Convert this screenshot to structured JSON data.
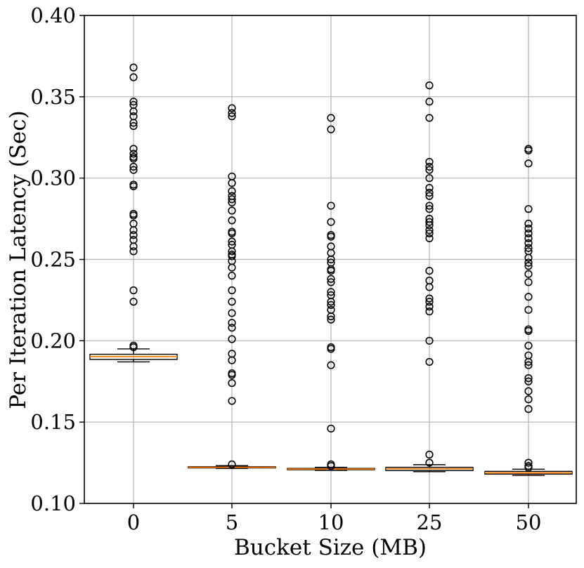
{
  "chart_data": {
    "type": "box",
    "title": "",
    "xlabel": "Bucket Size (MB)",
    "ylabel": "Per Iteration Latency (Sec)",
    "ylim": [
      0.1,
      0.4
    ],
    "yticks": [
      "0.10",
      "0.15",
      "0.20",
      "0.25",
      "0.30",
      "0.35",
      "0.40"
    ],
    "ytick_values": [
      0.1,
      0.15,
      0.2,
      0.25,
      0.3,
      0.35,
      0.4
    ],
    "categories": [
      "0",
      "5",
      "10",
      "25",
      "50"
    ],
    "grid": true,
    "boxes": [
      {
        "category": "0",
        "whisker_low": 0.187,
        "q1": 0.1885,
        "median": 0.1903,
        "q3": 0.1917,
        "whisker_high": 0.195,
        "outliers": [
          0.368,
          0.362,
          0.347,
          0.345,
          0.341,
          0.338,
          0.334,
          0.332,
          0.318,
          0.315,
          0.313,
          0.312,
          0.307,
          0.305,
          0.296,
          0.295,
          0.278,
          0.277,
          0.272,
          0.268,
          0.265,
          0.262,
          0.258,
          0.255,
          0.231,
          0.224,
          0.197,
          0.196
        ]
      },
      {
        "category": "5",
        "whisker_low": 0.1215,
        "q1": 0.1218,
        "median": 0.1222,
        "q3": 0.1226,
        "whisker_high": 0.1232,
        "outliers": [
          0.343,
          0.34,
          0.338,
          0.301,
          0.297,
          0.292,
          0.289,
          0.287,
          0.285,
          0.28,
          0.274,
          0.267,
          0.266,
          0.261,
          0.259,
          0.255,
          0.253,
          0.252,
          0.249,
          0.245,
          0.24,
          0.231,
          0.224,
          0.217,
          0.211,
          0.208,
          0.201,
          0.192,
          0.188,
          0.18,
          0.179,
          0.174,
          0.163,
          0.124
        ]
      },
      {
        "category": "10",
        "whisker_low": 0.1203,
        "q1": 0.1207,
        "median": 0.1211,
        "q3": 0.1215,
        "whisker_high": 0.1222,
        "outliers": [
          0.337,
          0.33,
          0.283,
          0.273,
          0.265,
          0.264,
          0.258,
          0.254,
          0.25,
          0.248,
          0.244,
          0.243,
          0.238,
          0.236,
          0.23,
          0.228,
          0.224,
          0.222,
          0.219,
          0.215,
          0.213,
          0.196,
          0.195,
          0.185,
          0.146,
          0.124,
          0.123
        ]
      },
      {
        "category": "25",
        "whisker_low": 0.1195,
        "q1": 0.1202,
        "median": 0.1213,
        "q3": 0.1222,
        "whisker_high": 0.1238,
        "outliers": [
          0.357,
          0.347,
          0.337,
          0.31,
          0.307,
          0.305,
          0.3,
          0.294,
          0.291,
          0.289,
          0.283,
          0.281,
          0.275,
          0.273,
          0.271,
          0.268,
          0.266,
          0.263,
          0.243,
          0.237,
          0.233,
          0.226,
          0.224,
          0.221,
          0.218,
          0.2,
          0.187,
          0.13,
          0.125
        ]
      },
      {
        "category": "50",
        "whisker_low": 0.1172,
        "q1": 0.118,
        "median": 0.1188,
        "q3": 0.1197,
        "whisker_high": 0.121,
        "outliers": [
          0.318,
          0.317,
          0.309,
          0.281,
          0.272,
          0.269,
          0.266,
          0.263,
          0.26,
          0.257,
          0.255,
          0.251,
          0.248,
          0.246,
          0.241,
          0.236,
          0.227,
          0.219,
          0.207,
          0.206,
          0.197,
          0.191,
          0.187,
          0.185,
          0.177,
          0.175,
          0.169,
          0.164,
          0.158,
          0.125,
          0.123,
          0.122
        ]
      }
    ]
  }
}
